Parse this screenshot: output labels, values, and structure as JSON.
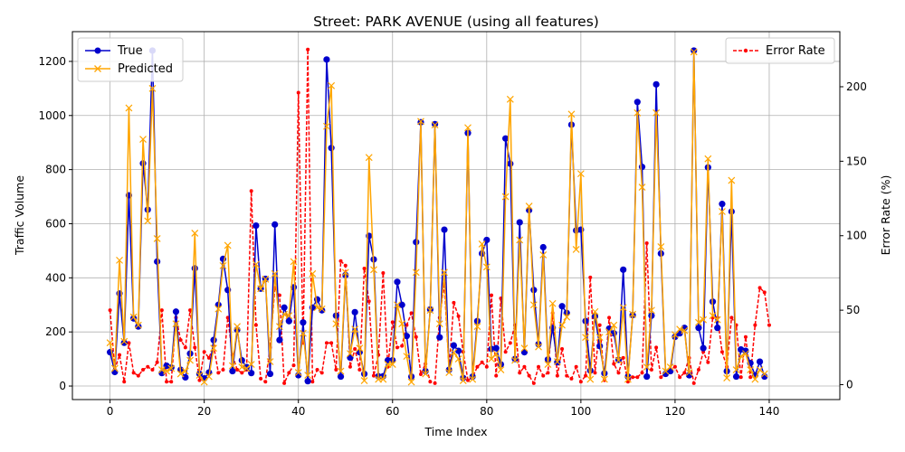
{
  "chart_data": {
    "type": "line",
    "title": "Street: PARK AVENUE (using all features)",
    "xlabel": "Time Index",
    "ylabel": "Traffic Volume",
    "y2label": "Error Rate (%)",
    "xlim": [
      -8,
      155
    ],
    "ylim": [
      -50,
      1310
    ],
    "y2lim": [
      -10,
      237
    ],
    "xticks": [
      0,
      20,
      40,
      60,
      80,
      100,
      120,
      140
    ],
    "yticks": [
      0,
      200,
      400,
      600,
      800,
      1000,
      1200
    ],
    "y2ticks": [
      0,
      50,
      100,
      150,
      200
    ],
    "grid": true,
    "legend_left": "upper-left",
    "legend_right": "upper-right",
    "series": [
      {
        "name": "True",
        "color": "#0000cc",
        "axis": "left",
        "marker": "circle",
        "values": [
          125,
          52,
          342,
          160,
          705,
          250,
          220,
          823,
          652,
          1240,
          460,
          48,
          75,
          68,
          275,
          60,
          32,
          120,
          435,
          45,
          28,
          50,
          170,
          300,
          470,
          355,
          55,
          208,
          95,
          70,
          48,
          593,
          360,
          396,
          45,
          597,
          170,
          290,
          240,
          365,
          40,
          235,
          18,
          290,
          320,
          280,
          1207,
          880,
          260,
          35,
          410,
          105,
          273,
          125,
          45,
          555,
          468,
          36,
          36,
          95,
          95,
          385,
          300,
          185,
          35,
          532,
          975,
          55,
          283,
          968,
          180,
          578,
          60,
          150,
          130,
          30,
          935,
          35,
          240,
          490,
          540,
          137,
          140,
          80,
          915,
          822,
          100,
          605,
          125,
          650,
          355,
          155,
          513,
          98,
          215,
          88,
          295,
          270,
          966,
          575,
          578,
          240,
          57,
          258,
          148,
          47,
          212,
          195,
          97,
          430,
          35,
          262,
          1050,
          810,
          35,
          260,
          1115,
          490,
          45,
          55,
          182,
          195,
          215,
          40,
          1240,
          215,
          140,
          808,
          312,
          215,
          673,
          55,
          645,
          35,
          135,
          130,
          85,
          40,
          90,
          35
        ]
      },
      {
        "name": "Predicted",
        "color": "#ffa500",
        "axis": "left",
        "marker": "x",
        "values": [
          160,
          65,
          465,
          165,
          1028,
          255,
          225,
          912,
          610,
          1100,
          545,
          60,
          55,
          65,
          230,
          45,
          55,
          95,
          565,
          40,
          15,
          35,
          140,
          285,
          445,
          520,
          75,
          220,
          70,
          65,
          80,
          450,
          360,
          395,
          90,
          415,
          220,
          265,
          260,
          460,
          50,
          195,
          40,
          415,
          290,
          285,
          960,
          1110,
          230,
          55,
          420,
          120,
          210,
          140,
          20,
          845,
          430,
          25,
          25,
          80,
          80,
          300,
          230,
          110,
          15,
          420,
          978,
          45,
          280,
          965,
          230,
          420,
          50,
          125,
          100,
          20,
          955,
          25,
          220,
          525,
          440,
          100,
          120,
          60,
          700,
          1060,
          95,
          540,
          140,
          665,
          300,
          145,
          485,
          80,
          305,
          90,
          225,
          255,
          1005,
          505,
          785,
          180,
          25,
          275,
          180,
          25,
          200,
          225,
          95,
          290,
          25,
          265,
          1010,
          735,
          70,
          280,
          1010,
          515,
          55,
          70,
          190,
          210,
          205,
          50,
          1235,
          235,
          245,
          840,
          260,
          245,
          645,
          30,
          760,
          60,
          110,
          120,
          60,
          25,
          60,
          45
        ]
      },
      {
        "name": "Error Rate",
        "color": "#ff0000",
        "axis": "right",
        "marker": "dot",
        "values": [
          50,
          10,
          20,
          2,
          28,
          8,
          6,
          10,
          12,
          10,
          15,
          50,
          2,
          2,
          45,
          30,
          25,
          50,
          25,
          3,
          22,
          18,
          26,
          8,
          10,
          45,
          20,
          10,
          8,
          10,
          130,
          40,
          4,
          2,
          25,
          65,
          60,
          1,
          8,
          13,
          196,
          28,
          225,
          2,
          10,
          8,
          28,
          28,
          10,
          83,
          80,
          12,
          24,
          10,
          78,
          56,
          6,
          20,
          75,
          12,
          42,
          25,
          26,
          40,
          48,
          32,
          7,
          14,
          2,
          1,
          45,
          68,
          10,
          55,
          46,
          22,
          3,
          5,
          12,
          15,
          12,
          60,
          6,
          58,
          22,
          28,
          40,
          8,
          12,
          6,
          1,
          12,
          6,
          8,
          48,
          6,
          24,
          6,
          4,
          12,
          2,
          6,
          72,
          8,
          40,
          3,
          45,
          14,
          8,
          18,
          2,
          5,
          5,
          8,
          95,
          10,
          25,
          5,
          8,
          10,
          12,
          5,
          8,
          18,
          1,
          10,
          22,
          15,
          45,
          45,
          22,
          12,
          45,
          40,
          5,
          32,
          5,
          40,
          65,
          62,
          40
        ]
      }
    ]
  }
}
